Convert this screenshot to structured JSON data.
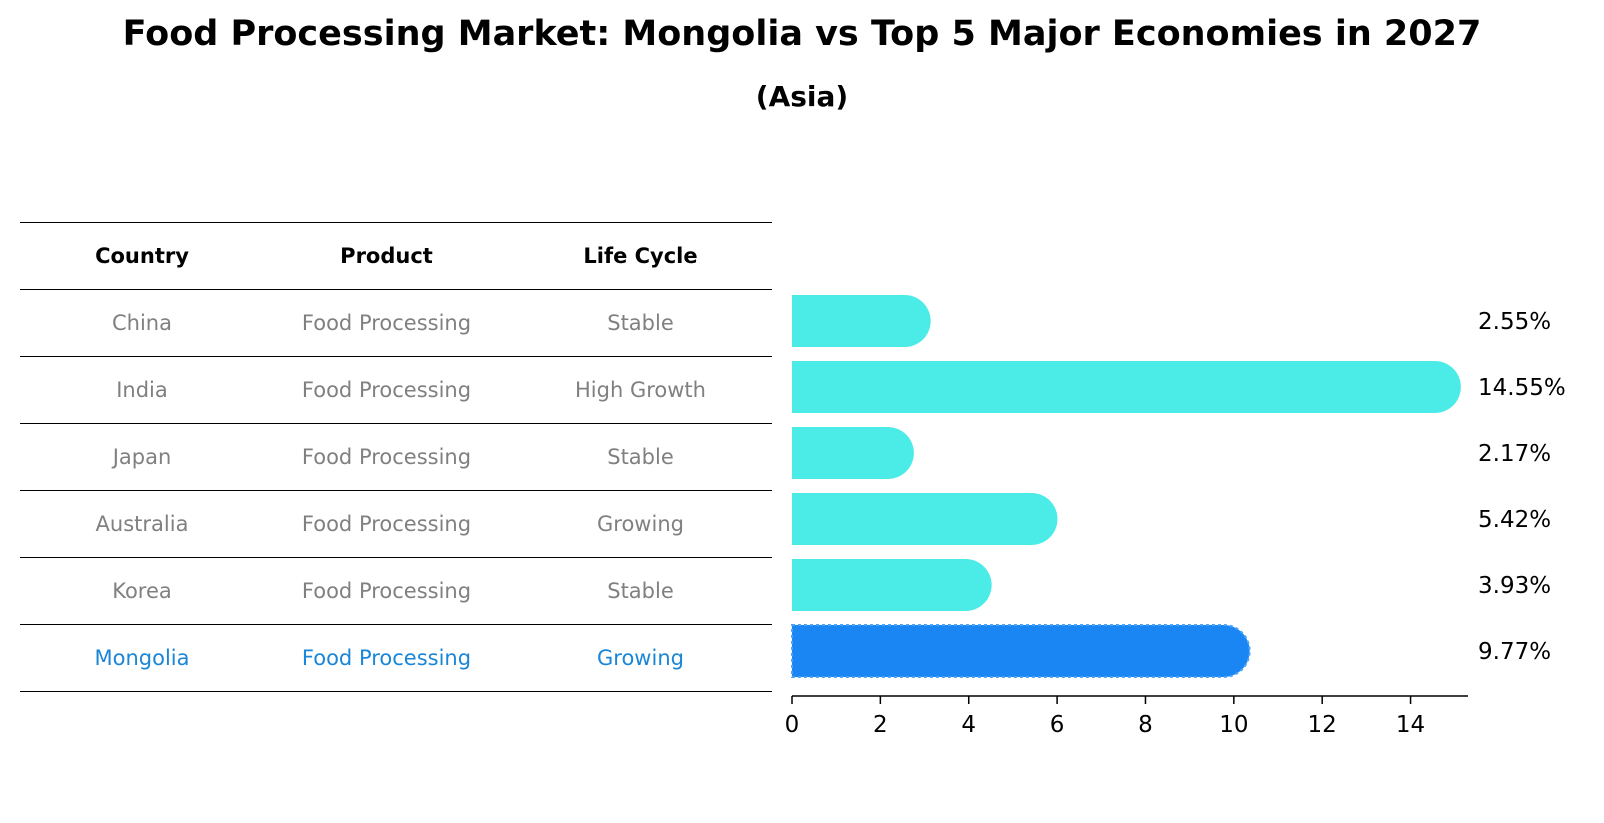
{
  "chart_data": {
    "type": "bar",
    "title": "Food Processing Market: Mongolia vs Top 5 Major Economies in 2027",
    "subtitle": "(Asia)",
    "table": {
      "columns": [
        "Country",
        "Product",
        "Life Cycle"
      ],
      "rows": [
        {
          "country": "China",
          "product": "Food Processing",
          "life_cycle": "Stable"
        },
        {
          "country": "India",
          "product": "Food Processing",
          "life_cycle": "High Growth"
        },
        {
          "country": "Japan",
          "product": "Food Processing",
          "life_cycle": "Stable"
        },
        {
          "country": "Australia",
          "product": "Food Processing",
          "life_cycle": "Growing"
        },
        {
          "country": "Korea",
          "product": "Food Processing",
          "life_cycle": "Stable"
        },
        {
          "country": "Mongolia",
          "product": "Food Processing",
          "life_cycle": "Growing"
        }
      ]
    },
    "categories": [
      "China",
      "India",
      "Japan",
      "Australia",
      "Korea",
      "Mongolia"
    ],
    "values": [
      2.55,
      14.55,
      2.17,
      5.42,
      3.93,
      9.77
    ],
    "value_labels": [
      "2.55%",
      "14.55%",
      "2.17%",
      "5.42%",
      "3.93%",
      "9.77%"
    ],
    "highlight": "Mongolia",
    "xlim": [
      0,
      15.3
    ],
    "xticks": [
      0,
      2,
      4,
      6,
      8,
      10,
      12,
      14
    ],
    "xlabel": "",
    "ylabel": "",
    "colors": {
      "bar": "#4bece8",
      "highlight_bar": "#1a86f4",
      "highlight_text": "#1a86d8",
      "muted_text": "#808080"
    }
  }
}
